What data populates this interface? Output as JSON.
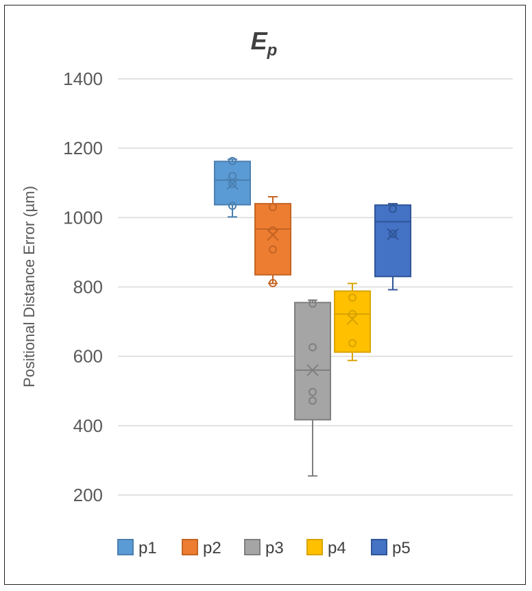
{
  "chart_data": {
    "type": "boxplot",
    "title": "E",
    "title_subscript": "p",
    "ylabel": "Positional Distance Error (µm)",
    "xlabel": "",
    "ylim": [
      200,
      1400
    ],
    "yticks": [
      200,
      400,
      600,
      800,
      1000,
      1200,
      1400
    ],
    "grid": true,
    "legend_position": "bottom",
    "series": [
      {
        "name": "p1",
        "color": "#5b9bd5",
        "edge": "#4a7fb0",
        "whisker_low": 1002,
        "q1": 1037,
        "median": 1108,
        "q3": 1162,
        "whisker_high": 1168,
        "mean": 1097,
        "points": [
          1163,
          1120,
          1097,
          1034
        ]
      },
      {
        "name": "p2",
        "color": "#ed7d31",
        "edge": "#c46423",
        "whisker_low": 810,
        "q1": 835,
        "median": 967,
        "q3": 1040,
        "whisker_high": 1060,
        "mean": 950,
        "points": [
          1030,
          963,
          908,
          811
        ]
      },
      {
        "name": "p3",
        "color": "#a5a5a5",
        "edge": "#7f7f7f",
        "whisker_low": 255,
        "q1": 417,
        "median": 560,
        "q3": 755,
        "whisker_high": 762,
        "mean": 560,
        "points": [
          752,
          626,
          497,
          472
        ]
      },
      {
        "name": "p4",
        "color": "#ffc000",
        "edge": "#d9a300",
        "whisker_low": 588,
        "q1": 612,
        "median": 722,
        "q3": 788,
        "whisker_high": 810,
        "mean": 707,
        "points": [
          769,
          722,
          638
        ]
      },
      {
        "name": "p5",
        "color": "#4472c4",
        "edge": "#2f5597",
        "whisker_low": 792,
        "q1": 830,
        "median": 988,
        "q3": 1036,
        "whisker_high": 1040,
        "mean": 952,
        "points": [
          1025,
          953
        ]
      }
    ]
  }
}
